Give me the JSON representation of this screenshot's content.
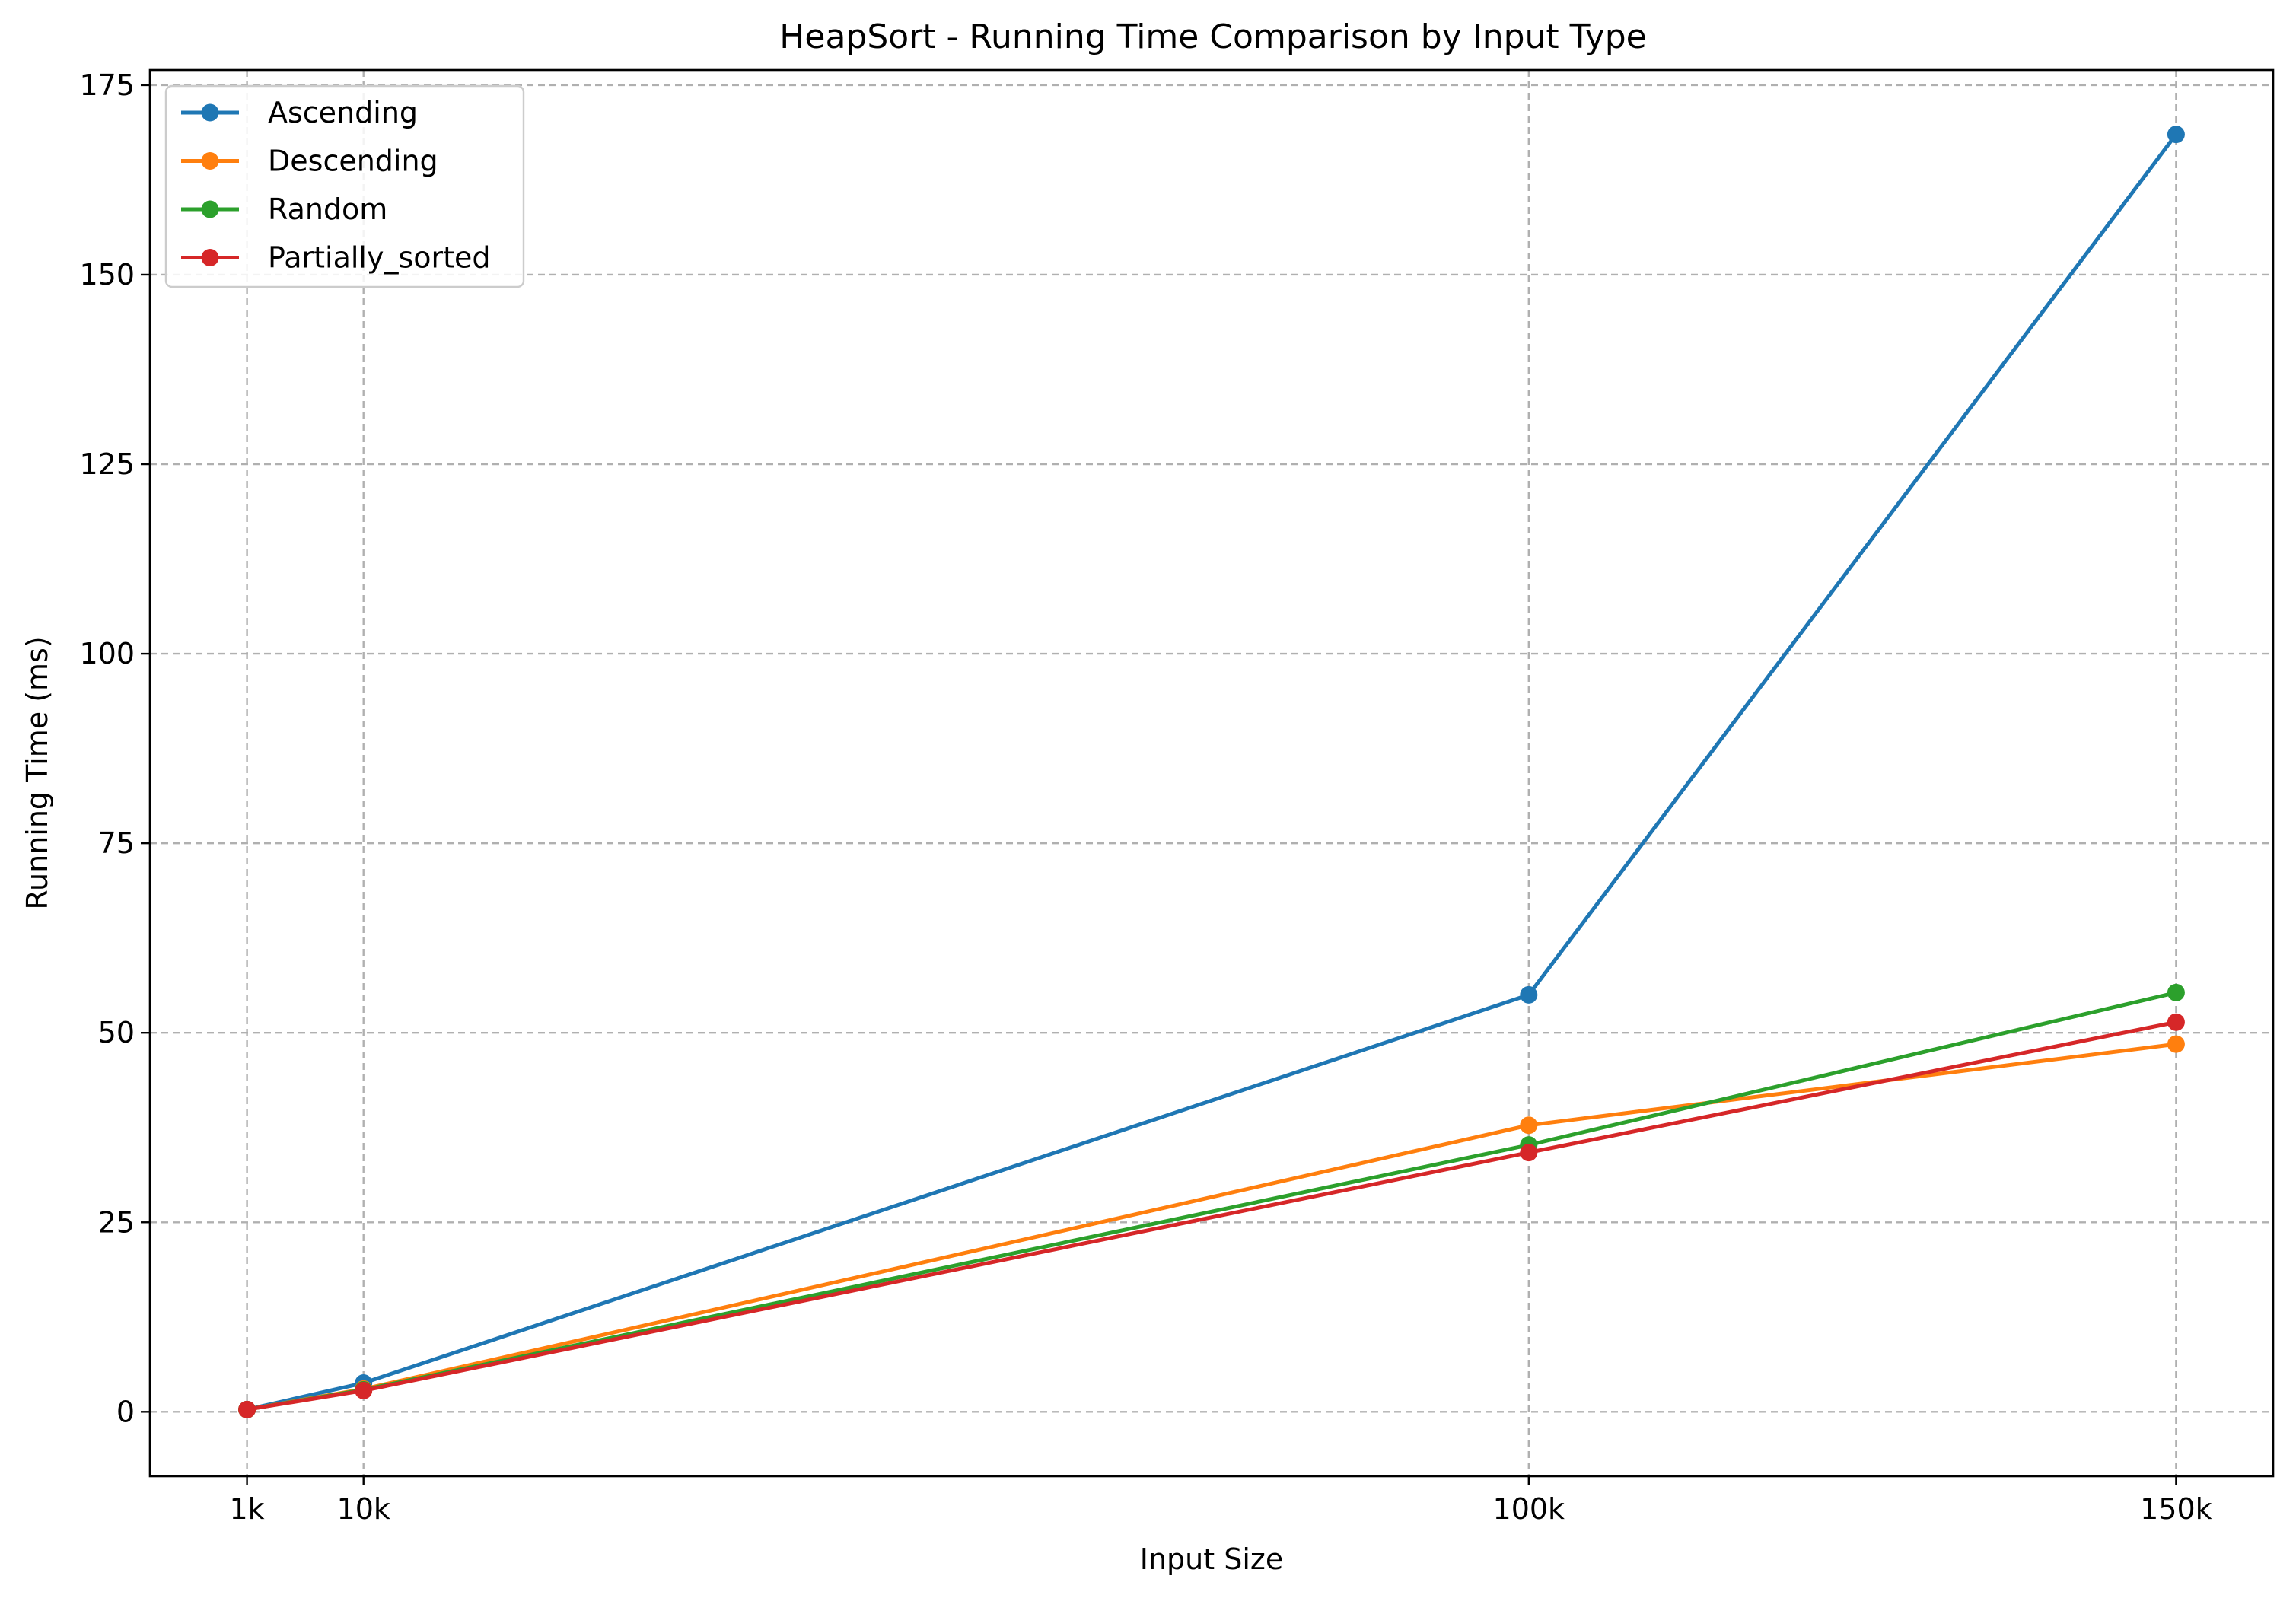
{
  "chart_data": {
    "type": "line",
    "title": "HeapSort - Running Time Comparison by Input Type",
    "xlabel": "Input Size",
    "ylabel": "Running Time (ms)",
    "x": [
      1000,
      10000,
      100000,
      150000
    ],
    "x_tick_labels": [
      "1k",
      "10k",
      "100k",
      "150k"
    ],
    "xlim": [
      -6500,
      157500
    ],
    "ylim": [
      -8.5,
      177
    ],
    "y_ticks": [
      0,
      25,
      50,
      75,
      100,
      125,
      150,
      175
    ],
    "grid": true,
    "legend_position": "top-left",
    "marker": "circle",
    "series": [
      {
        "name": "Ascending",
        "color": "#1f77b4",
        "values": [
          0.3,
          3.8,
          55.0,
          168.5
        ]
      },
      {
        "name": "Descending",
        "color": "#ff7f0e",
        "values": [
          0.3,
          3.0,
          37.8,
          48.5
        ]
      },
      {
        "name": "Random",
        "color": "#2ca02c",
        "values": [
          0.3,
          2.9,
          35.2,
          55.3
        ]
      },
      {
        "name": "Partially_sorted",
        "color": "#d62728",
        "values": [
          0.3,
          2.8,
          34.2,
          51.4
        ]
      }
    ]
  }
}
